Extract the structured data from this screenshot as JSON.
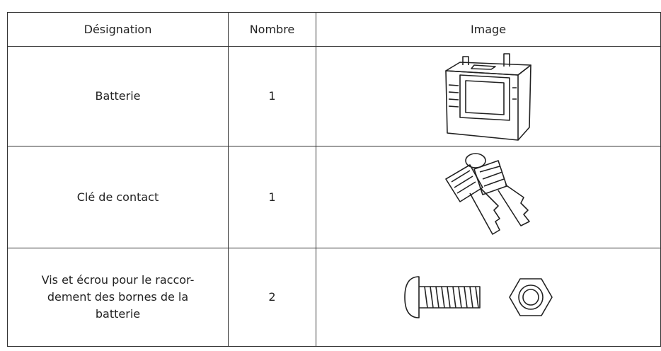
{
  "table": {
    "header": [
      "Désignation",
      "Nombre",
      "Image"
    ],
    "rows": [
      [
        "Batterie",
        1
      ],
      [
        "Clé de contact",
        1
      ],
      [
        "Vis et écrou pour le raccor-\ndement des bornes de la\nbatterie",
        2
      ]
    ]
  }
}
